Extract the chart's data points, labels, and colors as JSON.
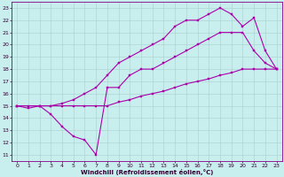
{
  "xlabel": "Windchill (Refroidissement éolien,°C)",
  "background_color": "#c8eeee",
  "grid_color": "#a8cece",
  "line_color": "#aa00aa",
  "xlim": [
    -0.5,
    23.5
  ],
  "ylim": [
    10.5,
    23.5
  ],
  "xticks": [
    0,
    1,
    2,
    3,
    4,
    5,
    6,
    7,
    8,
    9,
    10,
    11,
    12,
    13,
    14,
    15,
    16,
    17,
    18,
    19,
    20,
    21,
    22,
    23
  ],
  "yticks": [
    11,
    12,
    13,
    14,
    15,
    16,
    17,
    18,
    19,
    20,
    21,
    22,
    23
  ],
  "series": [
    {
      "x": [
        0,
        1,
        2,
        3,
        4,
        5,
        6,
        7,
        8,
        9,
        10,
        11,
        12,
        13,
        14,
        15,
        16,
        17,
        18,
        19,
        20,
        21,
        22,
        23
      ],
      "y": [
        15,
        15,
        15,
        15,
        15,
        15,
        15,
        15,
        15,
        15.3,
        15.5,
        15.8,
        16.0,
        16.2,
        16.5,
        16.8,
        17,
        17.2,
        17.5,
        17.7,
        18,
        18,
        18,
        18
      ]
    },
    {
      "x": [
        0,
        1,
        2,
        3,
        4,
        5,
        6,
        7,
        8,
        9,
        10,
        11,
        12,
        13,
        14,
        15,
        16,
        17,
        18,
        19,
        20,
        21,
        22,
        23
      ],
      "y": [
        15,
        14.8,
        15,
        14.3,
        13.3,
        12.5,
        12.2,
        11,
        16.5,
        16.5,
        17.5,
        18,
        18,
        18.5,
        19,
        19.5,
        20,
        20.5,
        21,
        21,
        21,
        19.5,
        18.5,
        18
      ]
    },
    {
      "x": [
        0,
        2,
        3,
        4,
        5,
        6,
        7,
        8,
        9,
        10,
        11,
        12,
        13,
        14,
        15,
        16,
        17,
        18,
        19,
        20,
        21,
        22,
        23
      ],
      "y": [
        15,
        15,
        15,
        15.2,
        15.5,
        16,
        16.5,
        17.5,
        18.5,
        19,
        19.5,
        20,
        20.5,
        21.5,
        22,
        22,
        22.5,
        23,
        22.5,
        21.5,
        22.2,
        19.5,
        18
      ]
    }
  ]
}
